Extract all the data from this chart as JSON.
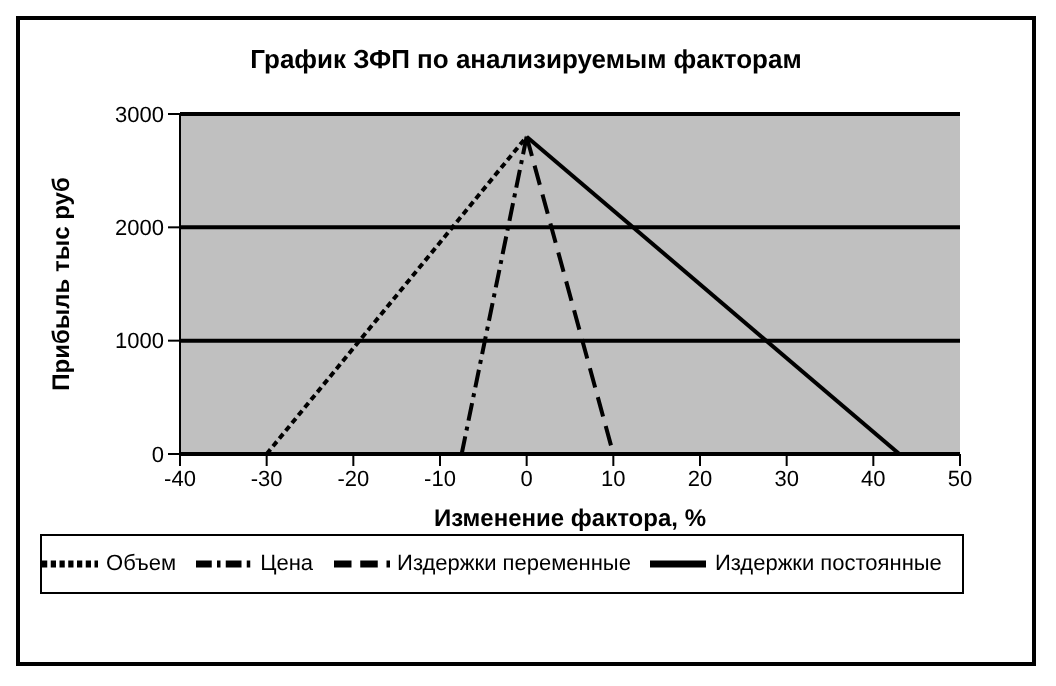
{
  "chart_data": {
    "type": "line",
    "title": "График ЗФП по анализируемым факторам",
    "xlabel": "Изменение фактора, %",
    "ylabel": "Прибыль тыс руб",
    "xlim": [
      -40,
      50
    ],
    "xticks": [
      -40,
      -30,
      -20,
      -10,
      0,
      10,
      20,
      30,
      40,
      50
    ],
    "ylim": [
      0,
      3000
    ],
    "yticks": [
      0,
      1000,
      2000,
      3000
    ],
    "grid": "y",
    "legend": "bottom",
    "marker": "none",
    "series": [
      {
        "name": "Объем",
        "color": "#000000",
        "line_style": "dotted",
        "x": [
          -30,
          0
        ],
        "values": [
          0,
          2800
        ]
      },
      {
        "name": "Цена",
        "color": "#000000",
        "line_style": "dashdot",
        "x": [
          -7.5,
          0
        ],
        "values": [
          0,
          2800
        ]
      },
      {
        "name": "Издержки переменные",
        "color": "#000000",
        "line_style": "dashed",
        "x": [
          0,
          10
        ],
        "values": [
          2800,
          0
        ]
      },
      {
        "name": "Издержки постоянные",
        "color": "#000000",
        "line_style": "solid",
        "x": [
          0,
          43
        ],
        "values": [
          2800,
          0
        ]
      }
    ]
  }
}
